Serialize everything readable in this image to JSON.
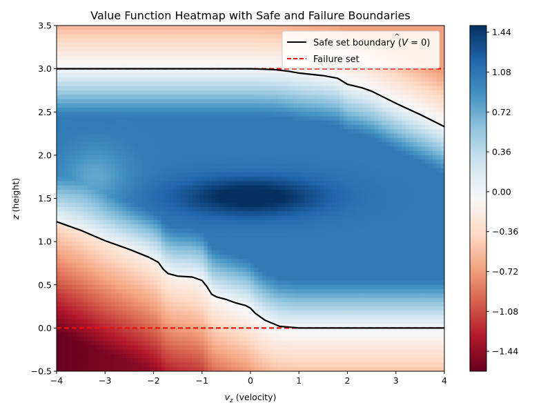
{
  "chart_data": {
    "type": "heatmap",
    "title": "Value Function Heatmap with Safe and Failure Boundaries",
    "xlabel_var": "v",
    "xlabel_sub": "z",
    "xlabel_rest": " (velocity)",
    "ylabel_var": "z",
    "ylabel_rest": " (height)",
    "xlim": [
      -4,
      4
    ],
    "ylim": [
      -0.5,
      3.5
    ],
    "xticks": [
      -4,
      -3,
      -2,
      -1,
      0,
      1,
      2,
      3,
      4
    ],
    "yticks": [
      -0.5,
      0.0,
      0.5,
      1.0,
      1.5,
      2.0,
      2.5,
      3.0,
      3.5
    ],
    "xtick_labels": [
      "−4",
      "−3",
      "−2",
      "−1",
      "0",
      "1",
      "2",
      "3",
      "4"
    ],
    "ytick_labels": [
      "−0.5",
      "0.0",
      "0.5",
      "1.0",
      "1.5",
      "2.0",
      "2.5",
      "3.0",
      "3.5"
    ],
    "colorbar": {
      "colormap": "RdBu",
      "vmin": -1.62,
      "vmax": 1.5,
      "ticks": [
        1.44,
        1.08,
        0.72,
        0.36,
        0.0,
        -0.36,
        -0.72,
        -1.08,
        -1.44
      ],
      "tick_labels": [
        "1.44",
        "1.08",
        "0.72",
        "0.36",
        "0.00",
        "−0.36",
        "−0.72",
        "−1.08",
        "−1.44"
      ]
    },
    "legend": {
      "placement": "top-right",
      "entries": [
        {
          "label_prefix": "Safe set boundary (",
          "label_var": "V",
          "label_suffix": " = 0)",
          "color": "#000000",
          "style": "solid"
        },
        {
          "label": "Failure set",
          "color": "#e8120c",
          "style": "dashed"
        }
      ]
    },
    "failure_set_z": [
      0.0,
      3.0
    ],
    "safe_boundary_upper": {
      "x": [
        -4,
        -3,
        -2,
        -1,
        -0.5,
        0,
        0.5,
        0.8,
        1,
        1.5,
        1.8,
        2,
        2.3,
        2.5,
        3,
        3.5,
        4
      ],
      "y": [
        3.0,
        3.0,
        3.0,
        3.0,
        3.0,
        3.0,
        2.99,
        2.97,
        2.95,
        2.92,
        2.89,
        2.82,
        2.78,
        2.74,
        2.6,
        2.47,
        2.33
      ]
    },
    "safe_boundary_lower": {
      "x": [
        -4,
        -3.5,
        -3,
        -2.5,
        -2.1,
        -1.9,
        -1.8,
        -1.7,
        -1.5,
        -1.2,
        -1,
        -0.9,
        -0.8,
        -0.7,
        -0.5,
        -0.3,
        -0.1,
        0,
        0.1,
        0.3,
        0.6,
        1,
        2,
        3,
        4
      ],
      "y": [
        1.23,
        1.13,
        1.01,
        0.91,
        0.82,
        0.76,
        0.68,
        0.63,
        0.6,
        0.59,
        0.55,
        0.48,
        0.39,
        0.36,
        0.33,
        0.29,
        0.26,
        0.23,
        0.17,
        0.09,
        0.02,
        0.0,
        0.0,
        0.0,
        0.0
      ]
    }
  }
}
